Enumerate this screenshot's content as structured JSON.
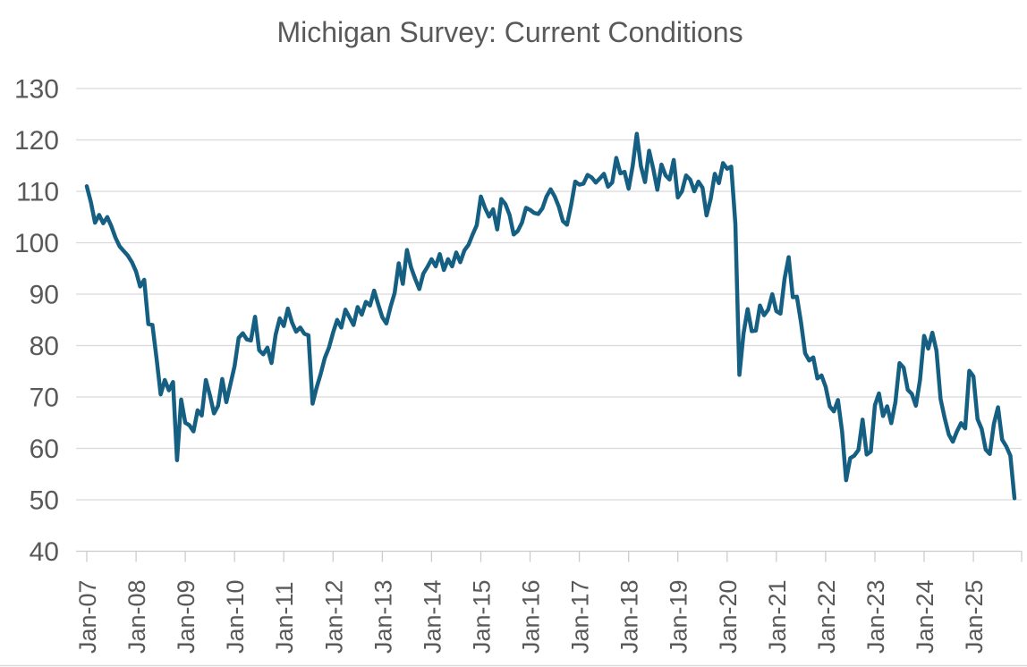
{
  "page": {
    "background": "#FFFFFF"
  },
  "chart_data": {
    "type": "line",
    "title": "Michigan Survey: Current Conditions",
    "xlabel": "",
    "ylabel": "",
    "x_start": "Jan-07",
    "x_end": "Nov-25",
    "frequency": "monthly",
    "x_tick_labels": [
      "Jan-07",
      "Jan-08",
      "Jan-09",
      "Jan-10",
      "Jan-11",
      "Jan-12",
      "Jan-13",
      "Jan-14",
      "Jan-15",
      "Jan-16",
      "Jan-17",
      "Jan-18",
      "Jan-19",
      "Jan-20",
      "Jan-21",
      "Jan-22",
      "Jan-23",
      "Jan-24",
      "Jan-25"
    ],
    "y_tick_labels": [
      "130",
      "120",
      "110",
      "100",
      "90",
      "80",
      "70",
      "60",
      "50",
      "40"
    ],
    "ylim": [
      40,
      130
    ],
    "y_step": 10,
    "grid": "horizontal",
    "legend": "none",
    "colors": {
      "line": "#156082",
      "grid": "#D9D9D9",
      "axis": "#CCCCCC",
      "text": "#595959",
      "background": "#FFFFFF"
    },
    "series": [
      {
        "name": "Current Conditions",
        "values": [
          111,
          107.9,
          103.9,
          105.4,
          103.8,
          105,
          103.2,
          101,
          99.3,
          98.4,
          97.5,
          96.2,
          94.4,
          91.5,
          92.8,
          84.2,
          84,
          77.5,
          70.5,
          73.3,
          71.3,
          72.9,
          57.7,
          69.5,
          65,
          64.5,
          63.3,
          67.4,
          66.4,
          73.3,
          70.3,
          66.8,
          68.3,
          73.5,
          69,
          72.5,
          76,
          81.5,
          82.4,
          81.2,
          81,
          85.6,
          79.1,
          78.3,
          79.6,
          76.6,
          82.1,
          85.3,
          83.8,
          87.2,
          84.5,
          82.7,
          83.5,
          82.3,
          82,
          68.7,
          71.8,
          74.5,
          77.6,
          79.6,
          82.5,
          85,
          83.5,
          87,
          85.5,
          84,
          87.5,
          86,
          88.5,
          87.8,
          90.7,
          88,
          85.5,
          84.3,
          87.5,
          90.2,
          96,
          92,
          98.6,
          95.2,
          93,
          91,
          94,
          95.3,
          96.8,
          95.4,
          97.8,
          94.7,
          96.8,
          95.4,
          98.1,
          96.2,
          98.5,
          99.6,
          101.6,
          103.4,
          109,
          106.8,
          105.1,
          106.5,
          102.6,
          108.5,
          107.5,
          105.4,
          101.6,
          102.3,
          103.9,
          106.8,
          106.4,
          105.8,
          105.6,
          106.7,
          109,
          110.4,
          109,
          107,
          104.2,
          103.5,
          107.3,
          111.9,
          111.3,
          111.5,
          113.2,
          112.7,
          111.7,
          112.5,
          113.4,
          110.9,
          111.7,
          116.5,
          113.5,
          113.8,
          110.5,
          114.9,
          121.2,
          114.9,
          111.8,
          117.9,
          114.4,
          110.3,
          115.2,
          113.1,
          112.3,
          116.1,
          108.8,
          110,
          113.1,
          112.3,
          110,
          111.9,
          110.7,
          105.3,
          108.5,
          113.4,
          111.6,
          115.5,
          114.4,
          114.8,
          103.7,
          74.3,
          82.3,
          87.1,
          82.8,
          82.9,
          87.8,
          85.9,
          87,
          90,
          86.7,
          86.2,
          93,
          97.2,
          89.4,
          89.5,
          84.5,
          78.5,
          77.1,
          77.7,
          73.6,
          74.2,
          72,
          68.2,
          67.2,
          69.4,
          63.3,
          53.8,
          58.1,
          58.6,
          59.7,
          65.6,
          58.8,
          59.4,
          68.4,
          70.7,
          66.3,
          68.2,
          64.9,
          69,
          76.6,
          75.7,
          71.4,
          70.6,
          68.3,
          73.3,
          81.9,
          79.4,
          82.5,
          79,
          69.6,
          65.9,
          62.7,
          61.3,
          63.3,
          64.9,
          63.9,
          75.1,
          74,
          65.7,
          63.8,
          59.8,
          58.9,
          64.8,
          68,
          61.7,
          60.4,
          58.6,
          50.3
        ]
      }
    ]
  }
}
